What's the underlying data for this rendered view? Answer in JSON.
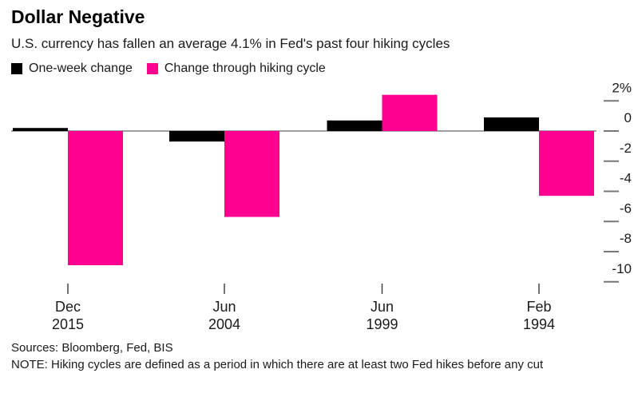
{
  "header": {
    "title": "Dollar Negative",
    "subtitle": "U.S. currency has fallen an average 4.1% in Fed's past four hiking cycles"
  },
  "legend": {
    "items": [
      {
        "label": "One-week change",
        "color": "#000000"
      },
      {
        "label": "Change through hiking cycle",
        "color": "#ff0090"
      }
    ]
  },
  "chart_data": {
    "type": "bar",
    "title": "Dollar Negative",
    "subtitle": "U.S. currency has fallen an average 4.1% in Fed's past four hiking cycles",
    "categories": [
      [
        "Dec",
        "2015"
      ],
      [
        "Jun",
        "2004"
      ],
      [
        "Jun",
        "1999"
      ],
      [
        "Feb",
        "1994"
      ]
    ],
    "series": [
      {
        "name": "One-week change",
        "color": "#000000",
        "values": [
          0.2,
          -0.7,
          0.7,
          0.9
        ]
      },
      {
        "name": "Change through hiking cycle",
        "color": "#ff0090",
        "values": [
          -8.9,
          -5.7,
          2.4,
          -4.3
        ]
      }
    ],
    "ylim": [
      -10.5,
      2.8
    ],
    "yticks": [
      2,
      0,
      -2,
      -4,
      -6,
      -8,
      -10
    ],
    "ytick_labels": [
      "2%",
      "0",
      "-2",
      "-4",
      "-6",
      "-8",
      "-10"
    ],
    "unit": "%",
    "grid": false,
    "zero_line": true,
    "legend_position": "top-left",
    "colors": {
      "zero_line": "#808080",
      "y_tick": "#777777",
      "x_tick": "#444444",
      "axis_text": "#1a1a1a"
    }
  },
  "footer": {
    "sources": "Sources: Bloomberg, Fed, BIS",
    "note": "NOTE: Hiking cycles are defined as a period in which there are at least two Fed hikes before any cut"
  }
}
